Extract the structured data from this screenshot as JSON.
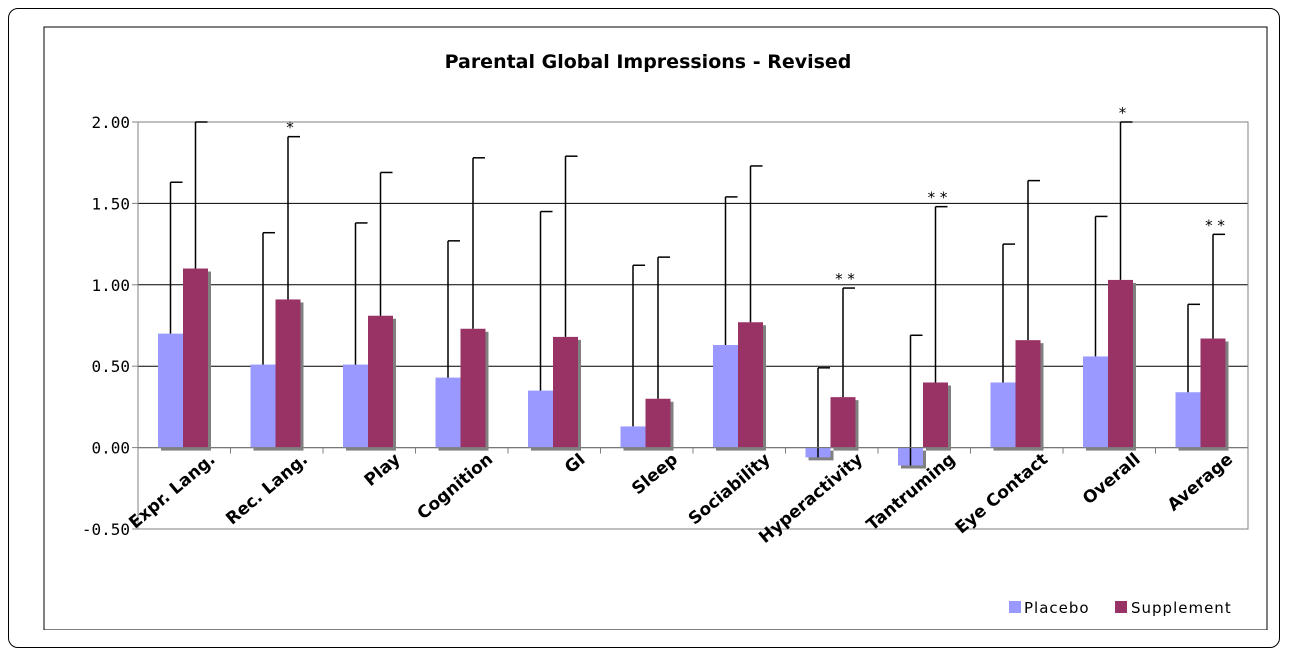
{
  "chart_data": {
    "type": "bar",
    "title": "Parental Global Impressions - Revised",
    "xlabel": "",
    "ylabel": "",
    "ylim": [
      -0.5,
      2.0
    ],
    "yticks": [
      "2.00",
      "1.50",
      "1.00",
      "0.50",
      "0.00",
      "-0.50"
    ],
    "ytick_values": [
      2.0,
      1.5,
      1.0,
      0.5,
      0.0,
      -0.5
    ],
    "grid": true,
    "legend_position": "bottom-right",
    "categories": [
      "Expr. Lang.",
      "Rec. Lang.",
      "Play",
      "Cognition",
      "GI",
      "Sleep",
      "Sociability",
      "Hyperactivity",
      "Tantruming",
      "Eye Contact",
      "Overall",
      "Average"
    ],
    "series": [
      {
        "name": "Placebo",
        "color": "#9999ff",
        "values": [
          0.7,
          0.51,
          0.51,
          0.43,
          0.35,
          0.13,
          0.63,
          -0.06,
          -0.11,
          0.4,
          0.56,
          0.34
        ],
        "error_upper": [
          1.63,
          1.32,
          1.38,
          1.27,
          1.45,
          1.12,
          1.54,
          0.49,
          0.69,
          1.25,
          1.42,
          0.88
        ]
      },
      {
        "name": "Supplement",
        "color": "#993366",
        "values": [
          1.1,
          0.91,
          0.81,
          0.73,
          0.68,
          0.3,
          0.77,
          0.31,
          0.4,
          0.66,
          1.03,
          0.67
        ],
        "error_upper": [
          2.0,
          1.91,
          1.69,
          1.78,
          1.79,
          1.17,
          1.73,
          0.98,
          1.48,
          1.64,
          2.01,
          1.31
        ]
      }
    ],
    "significance": [
      "",
      "*",
      "",
      "",
      "",
      "",
      "",
      "* *",
      "* *",
      "",
      "*",
      "* *"
    ]
  }
}
